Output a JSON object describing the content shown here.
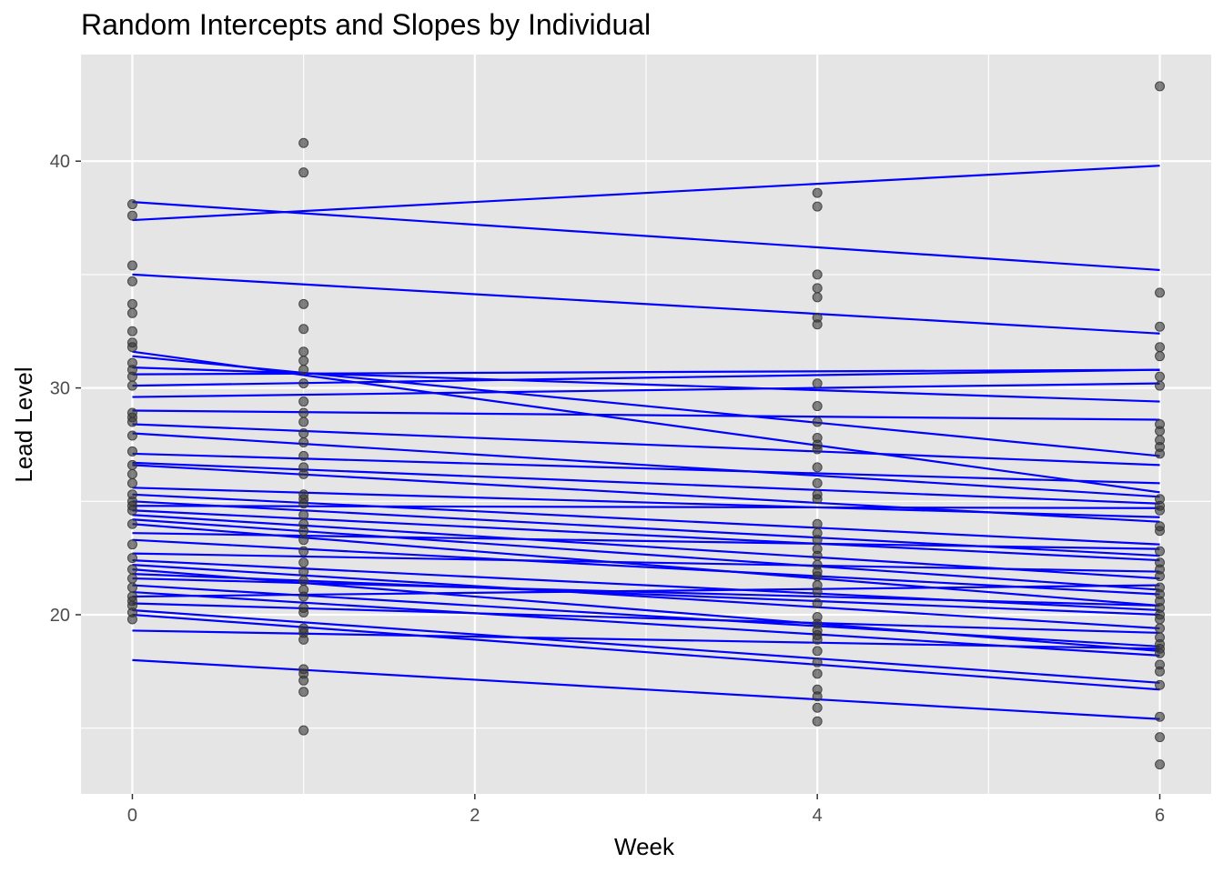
{
  "chart_data": {
    "type": "scatter",
    "title": "Random Intercepts and Slopes by Individual",
    "xlabel": "Week",
    "ylabel": "Lead Level",
    "xlim": [
      -0.3,
      6.3
    ],
    "ylim": [
      12.1,
      44.7
    ],
    "x_ticks": [
      0,
      2,
      4,
      6
    ],
    "x_minor": [
      1,
      3,
      5
    ],
    "y_ticks": [
      20,
      30,
      40
    ],
    "y_minor": [
      15,
      25,
      35
    ],
    "grid": true,
    "point_color": "#333333",
    "line_color": "#0000ff",
    "panel_color": "#e5e5e5",
    "grid_color": "#ffffff",
    "points": {
      "week0": [
        38.1,
        37.6,
        35.4,
        34.7,
        33.7,
        33.3,
        32.5,
        32.0,
        31.8,
        31.1,
        30.8,
        30.5,
        30.1,
        28.9,
        28.7,
        28.5,
        27.9,
        27.2,
        26.6,
        26.2,
        25.8,
        25.3,
        25.0,
        24.8,
        24.6,
        24.0,
        23.1,
        22.5,
        22.0,
        21.6,
        21.2,
        20.8,
        20.6,
        20.4,
        20.1,
        19.8
      ],
      "week1": [
        40.8,
        39.5,
        33.7,
        32.6,
        31.6,
        31.2,
        30.8,
        30.2,
        29.4,
        28.9,
        28.5,
        28.0,
        27.6,
        27.0,
        26.5,
        26.2,
        25.3,
        25.1,
        24.9,
        24.4,
        24.0,
        23.7,
        23.3,
        22.8,
        22.3,
        21.9,
        21.5,
        21.1,
        20.8,
        20.3,
        20.1,
        19.4,
        19.2,
        18.9,
        17.6,
        17.4,
        17.1,
        16.6,
        14.9
      ],
      "week4": [
        38.6,
        38.0,
        35.0,
        34.4,
        34.0,
        33.1,
        32.8,
        30.2,
        29.2,
        28.5,
        27.8,
        27.5,
        27.3,
        26.5,
        25.8,
        25.3,
        25.1,
        24.0,
        23.6,
        23.3,
        22.9,
        22.6,
        22.2,
        21.9,
        21.7,
        21.3,
        21.0,
        20.5,
        19.9,
        19.6,
        19.3,
        19.1,
        18.9,
        18.4,
        17.9,
        17.4,
        16.7,
        16.4,
        15.9,
        15.3
      ],
      "week6": [
        43.3,
        34.2,
        32.7,
        31.8,
        31.4,
        30.5,
        30.1,
        28.4,
        28.1,
        27.7,
        27.4,
        27.1,
        25.1,
        24.8,
        24.6,
        23.9,
        23.7,
        22.8,
        22.3,
        22.0,
        21.7,
        21.2,
        20.9,
        20.6,
        20.3,
        20.0,
        19.8,
        19.4,
        19.0,
        18.7,
        18.5,
        18.3,
        17.8,
        17.5,
        16.9,
        15.5,
        14.6,
        13.4
      ]
    },
    "lines": [
      [
        38.2,
        35.2
      ],
      [
        37.4,
        39.8
      ],
      [
        35.0,
        32.4
      ],
      [
        31.6,
        25.4
      ],
      [
        31.4,
        27.0
      ],
      [
        30.9,
        29.4
      ],
      [
        30.6,
        30.8
      ],
      [
        30.1,
        30.8
      ],
      [
        29.6,
        30.2
      ],
      [
        29.0,
        28.6
      ],
      [
        28.4,
        26.6
      ],
      [
        28.0,
        25.2
      ],
      [
        27.1,
        25.8
      ],
      [
        26.7,
        24.9
      ],
      [
        26.6,
        24.1
      ],
      [
        25.6,
        24.3
      ],
      [
        25.3,
        23.1
      ],
      [
        25.0,
        22.6
      ],
      [
        24.8,
        24.7
      ],
      [
        24.6,
        22.4
      ],
      [
        24.4,
        21.6
      ],
      [
        24.2,
        21.1
      ],
      [
        24.0,
        20.4
      ],
      [
        23.6,
        22.9
      ],
      [
        23.3,
        20.9
      ],
      [
        22.7,
        21.9
      ],
      [
        22.4,
        20.2
      ],
      [
        22.2,
        19.4
      ],
      [
        22.0,
        18.4
      ],
      [
        21.8,
        20.0
      ],
      [
        21.6,
        20.4
      ],
      [
        21.3,
        18.6
      ],
      [
        21.0,
        18.2
      ],
      [
        20.8,
        21.3
      ],
      [
        20.5,
        19.2
      ],
      [
        20.2,
        17.0
      ],
      [
        20.0,
        16.7
      ],
      [
        19.3,
        18.5
      ],
      [
        18.0,
        15.4
      ]
    ]
  }
}
